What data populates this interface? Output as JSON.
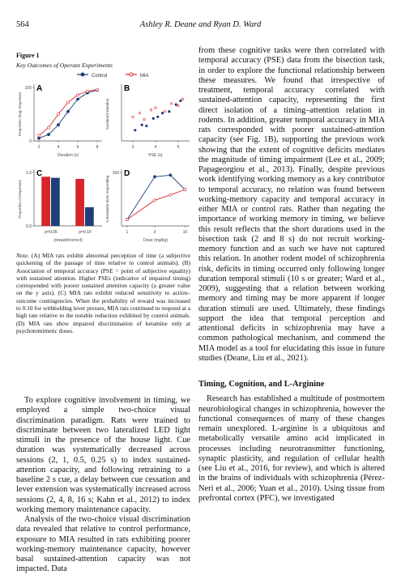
{
  "header": {
    "page_number": "564",
    "authors": "Ashley R. Deane and Ryan D. Ward"
  },
  "figure": {
    "label": "Figure 1",
    "title": "Key Outcomes of Operant Experiments",
    "legend": [
      {
        "name": "Control",
        "color": "#1d3f78"
      },
      {
        "name": "MIA",
        "color": "#d7262b"
      }
    ],
    "panels": [
      {
        "letter": "A",
        "type": "line",
        "xlabel": "Duration (s)",
        "ylabel": "Proportion 'long' responses",
        "x": [
          2,
          3,
          4,
          5,
          6,
          7,
          8
        ],
        "xlim": [
          1.5,
          8.5
        ],
        "xticks": [
          2,
          4,
          6,
          8
        ],
        "ylim": [
          0,
          100
        ],
        "yticks": [
          0,
          100
        ],
        "series": [
          {
            "color": "#1d3f78",
            "values": [
              5,
              12,
              30,
              55,
              78,
              90,
              95
            ]
          },
          {
            "color": "#d7262b",
            "values": [
              10,
              25,
              50,
              72,
              86,
              93,
              96
            ]
          }
        ]
      },
      {
        "letter": "B",
        "type": "scatter",
        "xlabel": "PSE (s)",
        "ylabel": "Sustained attention",
        "xlim": [
          2.5,
          5.5
        ],
        "xticks": [
          3,
          4,
          5
        ],
        "ylim": [
          0,
          100
        ],
        "series": [
          {
            "color": "#1d3f78",
            "x": [
              3.1,
              3.4,
              3.6,
              3.9,
              4.1,
              4.3,
              4.6,
              4.9,
              5.1
            ],
            "values": [
              20,
              30,
              28,
              42,
              45,
              52,
              55,
              68,
              75
            ]
          },
          {
            "color": "#d7262b",
            "x": [
              3.0,
              3.3,
              3.5,
              3.8,
              4.0,
              4.4,
              4.7,
              5.0,
              5.2
            ],
            "values": [
              45,
              52,
              40,
              58,
              62,
              55,
              70,
              66,
              78
            ]
          }
        ]
      },
      {
        "letter": "C",
        "type": "bar",
        "xlabel": "(reward/correct)",
        "ylabel": "Proportion of responses",
        "categories": [
          "p=0.05",
          "p=0.10"
        ],
        "ylim": [
          0,
          1
        ],
        "yticks": [
          {
            "value": 0,
            "label": "0.0"
          },
          {
            "value": 1,
            "label": "1.0"
          }
        ],
        "series": [
          {
            "color": "#d7262b",
            "values": [
              0.92,
              0.88
            ]
          },
          {
            "color": "#1d3f78",
            "values": [
              0.9,
              0.35
            ]
          }
        ]
      },
      {
        "letter": "D",
        "type": "line",
        "xlabel": "Dose (mg/kg)",
        "ylabel": "% ketamine-lever responding",
        "x": [
          1,
          3,
          5.6,
          10
        ],
        "xlim": [
          0.8,
          12
        ],
        "xticks": [
          1,
          3,
          10
        ],
        "xlog": true,
        "ylim": [
          0,
          100
        ],
        "yticks": [
          100
        ],
        "series": [
          {
            "color": "#1d3f78",
            "values": [
              12,
              92,
              95,
              68
            ]
          },
          {
            "color": "#d7262b",
            "values": [
              12,
              48,
              58,
              68
            ]
          }
        ]
      }
    ],
    "caption": {
      "label": "Note.",
      "text": "(A) MIA rats exhibit abnormal perception of time (a subjective quickening of the passage of time relative to control animals). (B) Association of temporal accuracy (PSE = point of subjective equality) with sustained attention. Higher PSEs (indicative of impaired timing) corresponded with poorer sustained attention capacity (a greater value on the y axis). (C) MIA rats exhibit reduced sensitivity to action–outcome contingencies. When the probability of reward was increased to 0.10 for withholding lever presses, MIA rats continued to respond at a high rate relative to the notable reduction exhibited by control animals. (D) MIA rats show impaired discrimination of ketamine only at psychotomimetic doses."
    }
  },
  "left_column": {
    "paragraphs": [
      "To explore cognitive involvement in timing, we employed a simple two-choice visual discrimination paradigm. Rats were trained to discriminate between two lateralized LED light stimuli in the presence of the house light. Cue duration was systematically decreased across sessions (2, 1, 0.5, 0.25 s) to index sustained-attention capacity, and following retraining to a baseline 2 s cue, a delay between cue cessation and lever extension was systematically increased across sessions (2, 4, 8, 16 s; Kahn et al., 2012) to index working memory maintenance capacity.",
      "Analysis of the two-choice visual discrimination data revealed that relative to control performance, exposure to MIA resulted in rats exhibiting poorer working-memory maintenance capacity, however basal sustained-attention capacity was not impacted. Data"
    ]
  },
  "right_column": {
    "paragraphs": [
      "from these cognitive tasks were then correlated with temporal accuracy (PSE) data from the bisection task, in order to explore the functional relationship between these measures. We found that irrespective of treatment, temporal accuracy correlated with sustained-attention capacity, representing the first direct isolation of a timing–attention relation in rodents. In addition, greater temporal accuracy in MIA rats corresponded with poorer sustained-attention capacity (see Fig. 1B), supporting the previous work showing that the extent of cognitive deficits mediates the magnitude of timing impairment (Lee et al., 2009; Papageorgiou et al., 2013). Finally, despite previous work identifying working memory as a key contributor to temporal accuracy, no relation was found between working-memory capacity and temporal accuracy in either MIA or control rats. Rather than negating the importance of working memory in timing, we believe this result reflects that the short durations used in the bisection task (2 and 8 s) do not recruit working-memory function and as such we have not captured this relation. In another rodent model of schizophrenia risk, deficits in timing occurred only following longer duration temporal stimuli (10 s or greater; Ward et al., 2009), suggesting that a relation between working memory and timing may be more apparent if longer duration stimuli are used. Ultimately, these findings support the idea that temporal perception and attentional deficits in schizophrenia may have a common pathological mechanism, and commend the MIA model as a tool for elucidating this issue in future studies (Deane, Liu et al., 2021).",
      "Research has established a multitude of postmortem neurobiological changes in schizophrenia, however the functional consequences of many of these changes remain unexplored. L-arginine is a ubiquitous and metabolically versatile amino acid implicated in processes including neurotransmitter functioning, synaptic plasticity, and regulation of cellular health (see Liu et al., 2016, for review), and which is altered in the brains of individuals with schizophrenia (Pérez-Neri et al., 2006; Yuan et al., 2010). Using tissue from prefrontal cortex (PFC), we investigated"
    ],
    "heading": "Timing, Cognition, and L-Arginine"
  }
}
